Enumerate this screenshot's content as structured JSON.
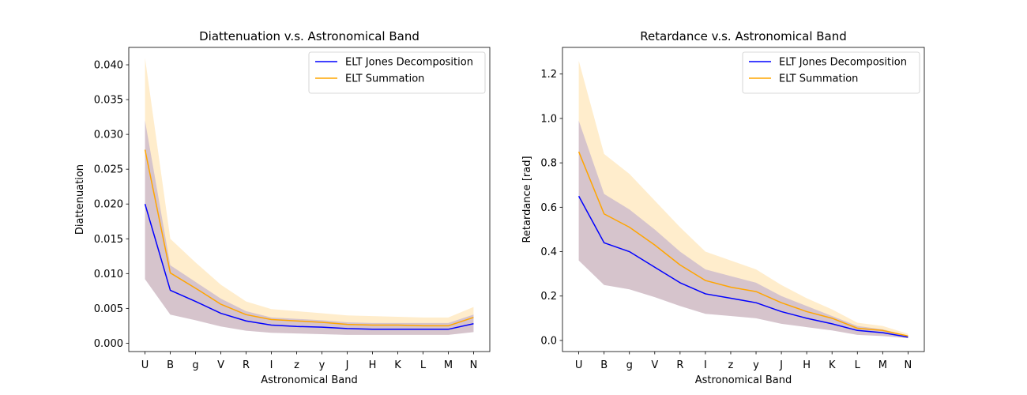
{
  "chart_data": [
    {
      "type": "line",
      "title": "Diattenuation v.s. Astronomical Band",
      "xlabel": "Astronomical Band",
      "ylabel": "Diattenuation",
      "categories": [
        "U",
        "B",
        "g",
        "V",
        "R",
        "I",
        "z",
        "y",
        "J",
        "H",
        "K",
        "L",
        "M",
        "N"
      ],
      "ylim": [
        -0.0012,
        0.0425
      ],
      "yticks": [
        0.0,
        0.005,
        0.01,
        0.015,
        0.02,
        0.025,
        0.03,
        0.035,
        0.04
      ],
      "ytick_labels": [
        "0.000",
        "0.005",
        "0.010",
        "0.015",
        "0.020",
        "0.025",
        "0.030",
        "0.035",
        "0.040"
      ],
      "legend_position": "upper-right",
      "series": [
        {
          "name": "ELT Jones Decomposition",
          "color": "#0000ff",
          "values": [
            0.02,
            0.0076,
            0.006,
            0.0043,
            0.0032,
            0.0026,
            0.0024,
            0.0023,
            0.0021,
            0.002,
            0.002,
            0.002,
            0.002,
            0.0028
          ],
          "lower": [
            0.0092,
            0.0041,
            0.0033,
            0.0024,
            0.0018,
            0.0015,
            0.0014,
            0.0013,
            0.0012,
            0.0012,
            0.0012,
            0.0012,
            0.0012,
            0.0016
          ],
          "upper": [
            0.032,
            0.0112,
            0.0088,
            0.0064,
            0.0046,
            0.0037,
            0.0035,
            0.0033,
            0.003,
            0.0029,
            0.0029,
            0.0029,
            0.0029,
            0.0041
          ]
        },
        {
          "name": "ELT Summation",
          "color": "#ffa500",
          "values": [
            0.0278,
            0.0101,
            0.0079,
            0.0056,
            0.0041,
            0.0034,
            0.0032,
            0.003,
            0.0027,
            0.0026,
            0.0026,
            0.0025,
            0.0025,
            0.0037
          ],
          "lower": [
            0.0092,
            0.0041,
            0.0033,
            0.0024,
            0.0018,
            0.0015,
            0.0014,
            0.0013,
            0.0012,
            0.0012,
            0.0012,
            0.0012,
            0.0012,
            0.0016
          ],
          "upper": [
            0.041,
            0.015,
            0.0116,
            0.0084,
            0.006,
            0.0049,
            0.0046,
            0.0043,
            0.004,
            0.0039,
            0.0038,
            0.0037,
            0.0037,
            0.0052
          ]
        }
      ]
    },
    {
      "type": "line",
      "title": "Retardance v.s. Astronomical Band",
      "xlabel": "Astronomical Band",
      "ylabel": "Retardance [rad]",
      "categories": [
        "U",
        "B",
        "g",
        "V",
        "R",
        "I",
        "z",
        "y",
        "J",
        "H",
        "K",
        "L",
        "M",
        "N"
      ],
      "ylim": [
        -0.05,
        1.32
      ],
      "yticks": [
        0.0,
        0.2,
        0.4,
        0.6,
        0.8,
        1.0,
        1.2
      ],
      "ytick_labels": [
        "0.0",
        "0.2",
        "0.4",
        "0.6",
        "0.8",
        "1.0",
        "1.2"
      ],
      "legend_position": "upper-right",
      "series": [
        {
          "name": "ELT Jones Decomposition",
          "color": "#0000ff",
          "values": [
            0.65,
            0.44,
            0.4,
            0.33,
            0.26,
            0.21,
            0.19,
            0.17,
            0.13,
            0.1,
            0.075,
            0.045,
            0.035,
            0.015
          ],
          "lower": [
            0.36,
            0.25,
            0.23,
            0.195,
            0.155,
            0.12,
            0.11,
            0.1,
            0.075,
            0.06,
            0.045,
            0.025,
            0.02,
            0.01
          ],
          "upper": [
            0.99,
            0.66,
            0.59,
            0.5,
            0.4,
            0.32,
            0.29,
            0.26,
            0.2,
            0.155,
            0.11,
            0.065,
            0.05,
            0.022
          ]
        },
        {
          "name": "ELT Summation",
          "color": "#ffa500",
          "values": [
            0.85,
            0.57,
            0.51,
            0.43,
            0.34,
            0.27,
            0.24,
            0.22,
            0.17,
            0.13,
            0.1,
            0.055,
            0.045,
            0.02
          ],
          "lower": [
            0.36,
            0.25,
            0.23,
            0.195,
            0.155,
            0.12,
            0.11,
            0.1,
            0.075,
            0.06,
            0.045,
            0.025,
            0.02,
            0.01
          ],
          "upper": [
            1.26,
            0.84,
            0.75,
            0.63,
            0.51,
            0.4,
            0.36,
            0.32,
            0.25,
            0.19,
            0.14,
            0.08,
            0.065,
            0.03
          ]
        }
      ]
    }
  ]
}
